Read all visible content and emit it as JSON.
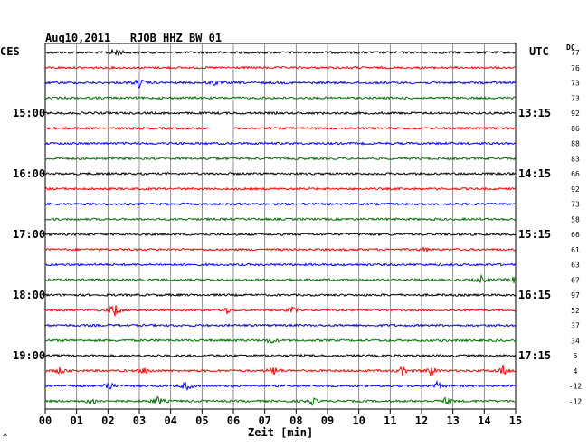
{
  "header": {
    "title": "Aug10,2011   RJOB HHZ BW 01",
    "left_zone": "CES",
    "right_zone": "UTC",
    "dc_label": "DC"
  },
  "footer": {
    "xlabel": "Zeit [min]",
    "corner_mark": "^"
  },
  "chart_data": {
    "type": "line",
    "title": "Aug10,2011   RJOB HHZ BW 01",
    "xlabel": "Zeit [min]",
    "ylabel": "",
    "xlim": [
      0,
      15
    ],
    "x_ticks": [
      "00",
      "01",
      "02",
      "03",
      "04",
      "05",
      "06",
      "07",
      "08",
      "09",
      "10",
      "11",
      "12",
      "13",
      "14",
      "15"
    ],
    "left_time_labels": [
      {
        "row": 4,
        "label": "15:00"
      },
      {
        "row": 8,
        "label": "16:00"
      },
      {
        "row": 12,
        "label": "17:00"
      },
      {
        "row": 16,
        "label": "18:00"
      },
      {
        "row": 20,
        "label": "19:00"
      }
    ],
    "right_time_labels": [
      {
        "row": 4,
        "label": "13:15"
      },
      {
        "row": 8,
        "label": "14:15"
      },
      {
        "row": 12,
        "label": "15:15"
      },
      {
        "row": 16,
        "label": "16:15"
      },
      {
        "row": 20,
        "label": "17:15"
      }
    ],
    "dc_values": [
      "77",
      "76",
      "73",
      "73",
      "92",
      "86",
      "88",
      "83",
      "66",
      "92",
      "73",
      "58",
      "66",
      "61",
      "63",
      "67",
      "97",
      "52",
      "37",
      "34",
      "5",
      "4",
      "-12",
      "-12"
    ],
    "trace_colors": [
      "#000000",
      "#ff0000",
      "#0000ff",
      "#007000"
    ],
    "grid": true,
    "rows": 24,
    "events": [
      {
        "row": 0,
        "x": 2.25,
        "amp": 6
      },
      {
        "row": 2,
        "x": 3.0,
        "amp": 5
      },
      {
        "row": 2,
        "x": 5.4,
        "amp": 3
      },
      {
        "row": 5,
        "gap": [
          5.2,
          6.0
        ]
      },
      {
        "row": 7,
        "x": 5.3,
        "amp": 2
      },
      {
        "row": 13,
        "x": 12.1,
        "amp": 2
      },
      {
        "row": 15,
        "x": 13.9,
        "amp": 4
      },
      {
        "row": 15,
        "x": 15.0,
        "amp": 5
      },
      {
        "row": 17,
        "x": 2.2,
        "amp": 8
      },
      {
        "row": 17,
        "x": 5.8,
        "amp": 3
      },
      {
        "row": 17,
        "x": 7.9,
        "amp": 3
      },
      {
        "row": 19,
        "x": 7.2,
        "amp": 3
      },
      {
        "row": 21,
        "x": 0.5,
        "amp": 4
      },
      {
        "row": 21,
        "x": 3.2,
        "amp": 4
      },
      {
        "row": 21,
        "x": 7.3,
        "amp": 5
      },
      {
        "row": 21,
        "x": 11.4,
        "amp": 5
      },
      {
        "row": 21,
        "x": 12.3,
        "amp": 6
      },
      {
        "row": 21,
        "x": 14.6,
        "amp": 6
      },
      {
        "row": 22,
        "x": 2.0,
        "amp": 6
      },
      {
        "row": 22,
        "x": 4.5,
        "amp": 5
      },
      {
        "row": 22,
        "x": 12.5,
        "amp": 5
      },
      {
        "row": 23,
        "x": 1.5,
        "amp": 4
      },
      {
        "row": 23,
        "x": 3.6,
        "amp": 5
      },
      {
        "row": 23,
        "x": 8.5,
        "amp": 4
      },
      {
        "row": 23,
        "x": 12.8,
        "amp": 4
      }
    ]
  }
}
